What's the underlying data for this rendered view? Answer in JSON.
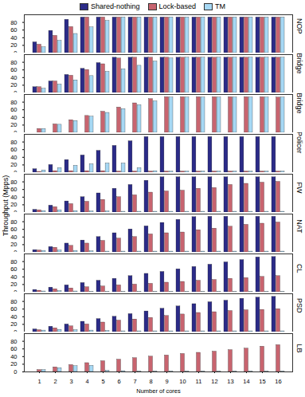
{
  "chart_data": [
    {
      "type": "bar",
      "title": "NOP",
      "legend": "top",
      "categories": [
        1,
        2,
        3,
        4,
        5,
        6,
        7,
        8,
        9,
        10,
        11,
        12,
        13,
        14,
        15,
        16
      ],
      "ylim": [
        0,
        100
      ],
      "yticks": [
        0,
        20,
        40,
        60,
        80
      ],
      "series": [
        {
          "name": "Shared-nothing",
          "color": "#2b2b88",
          "values": [
            28,
            58,
            87,
            93,
            93,
            93,
            93,
            93,
            93,
            93,
            93,
            93,
            93,
            93,
            93,
            93
          ]
        },
        {
          "name": "Lock-based",
          "color": "#c8646f",
          "values": [
            22,
            45,
            68,
            93,
            93,
            93,
            93,
            93,
            93,
            93,
            93,
            93,
            93,
            93,
            93,
            93
          ]
        },
        {
          "name": "TM",
          "color": "#a6d8f4",
          "values": [
            15,
            32,
            50,
            67,
            84,
            93,
            93,
            93,
            93,
            93,
            93,
            93,
            93,
            93,
            93,
            93
          ]
        }
      ]
    },
    {
      "type": "bar",
      "title": "SBridge",
      "categories": [
        1,
        2,
        3,
        4,
        5,
        6,
        7,
        8,
        9,
        10,
        11,
        12,
        13,
        14,
        15,
        16
      ],
      "ylim": [
        0,
        100
      ],
      "yticks": [
        0,
        20,
        40,
        60,
        80
      ],
      "series": [
        {
          "name": "Shared-nothing",
          "color": "#2b2b88",
          "values": [
            15,
            30,
            47,
            63,
            78,
            92,
            92,
            92,
            92,
            92,
            92,
            92,
            92,
            92,
            92,
            92
          ]
        },
        {
          "name": "Lock-based",
          "color": "#c8646f",
          "values": [
            15,
            30,
            45,
            60,
            75,
            90,
            92,
            92,
            92,
            92,
            92,
            92,
            92,
            92,
            92,
            92
          ]
        },
        {
          "name": "TM",
          "color": "#a6d8f4",
          "values": [
            11,
            22,
            33,
            44,
            55,
            62,
            71,
            82,
            90,
            92,
            92,
            92,
            92,
            92,
            92,
            92
          ]
        }
      ]
    },
    {
      "type": "bar",
      "title": "DBridge",
      "categories": [
        1,
        2,
        3,
        4,
        5,
        6,
        7,
        8,
        9,
        10,
        11,
        12,
        13,
        14,
        15,
        16
      ],
      "ylim": [
        0,
        100
      ],
      "yticks": [
        0,
        20,
        40,
        60,
        80
      ],
      "series": [
        {
          "name": "Shared-nothing",
          "color": "#2b2b88",
          "values": [
            null,
            null,
            null,
            null,
            null,
            null,
            null,
            null,
            null,
            null,
            null,
            null,
            null,
            null,
            null,
            null
          ]
        },
        {
          "name": "Lock-based",
          "color": "#c8646f",
          "values": [
            10,
            22,
            33,
            44,
            55,
            66,
            77,
            88,
            93,
            93,
            93,
            93,
            93,
            93,
            93,
            92
          ]
        },
        {
          "name": "TM",
          "color": "#a6d8f4",
          "values": [
            10,
            21,
            31,
            42,
            52,
            62,
            72,
            82,
            92,
            92,
            92,
            92,
            92,
            92,
            92,
            92
          ]
        }
      ]
    },
    {
      "type": "bar",
      "title": "Policer",
      "categories": [
        1,
        2,
        3,
        4,
        5,
        6,
        7,
        8,
        9,
        10,
        11,
        12,
        13,
        14,
        15,
        16
      ],
      "ylim": [
        0,
        100
      ],
      "yticks": [
        0,
        20,
        40,
        60,
        80
      ],
      "series": [
        {
          "name": "Shared-nothing",
          "color": "#2b2b88",
          "values": [
            9,
            20,
            33,
            45,
            57,
            70,
            82,
            93,
            93,
            93,
            93,
            93,
            93,
            93,
            93,
            93
          ]
        },
        {
          "name": "Lock-based",
          "color": "#c8646f",
          "values": [
            2,
            4,
            4,
            4,
            4,
            3,
            3,
            3,
            3,
            3,
            3,
            3,
            3,
            3,
            3,
            3
          ]
        },
        {
          "name": "TM",
          "color": "#a6d8f4",
          "values": [
            6,
            12,
            18,
            22,
            24,
            24,
            12,
            4,
            3,
            3,
            3,
            3,
            3,
            3,
            3,
            3
          ]
        }
      ]
    },
    {
      "type": "bar",
      "title": "FW",
      "y_label": "Throughput (Mpps)",
      "categories": [
        1,
        2,
        3,
        4,
        5,
        6,
        7,
        8,
        9,
        10,
        11,
        12,
        13,
        14,
        15,
        16
      ],
      "ylim": [
        0,
        100
      ],
      "yticks": [
        0,
        20,
        40,
        60,
        80
      ],
      "series": [
        {
          "name": "Shared-nothing",
          "color": "#2b2b88",
          "values": [
            7,
            18,
            29,
            40,
            50,
            62,
            72,
            83,
            92,
            92,
            92,
            92,
            92,
            92,
            92,
            92
          ]
        },
        {
          "name": "Lock-based",
          "color": "#c8646f",
          "values": [
            6,
            14,
            22,
            28,
            33,
            40,
            45,
            52,
            55,
            57,
            62,
            64,
            72,
            75,
            78,
            80
          ]
        },
        {
          "name": "TM",
          "color": "#a6d8f4",
          "values": [
            4,
            6,
            4,
            3,
            3,
            2,
            2,
            2,
            2,
            2,
            2,
            2,
            2,
            2,
            2,
            2
          ]
        }
      ]
    },
    {
      "type": "bar",
      "title": "NAT",
      "categories": [
        1,
        2,
        3,
        4,
        5,
        6,
        7,
        8,
        9,
        10,
        11,
        12,
        13,
        14,
        15,
        16
      ],
      "ylim": [
        0,
        100
      ],
      "yticks": [
        0,
        20,
        40,
        60,
        80
      ],
      "series": [
        {
          "name": "Shared-nothing",
          "color": "#2b2b88",
          "values": [
            6,
            14,
            23,
            31,
            40,
            50,
            60,
            68,
            77,
            85,
            92,
            93,
            93,
            93,
            93,
            93
          ]
        },
        {
          "name": "Lock-based",
          "color": "#c8646f",
          "values": [
            5,
            12,
            17,
            23,
            30,
            36,
            40,
            47,
            50,
            52,
            58,
            62,
            67,
            72,
            75,
            78
          ]
        },
        {
          "name": "TM",
          "color": "#a6d8f4",
          "values": [
            4,
            5,
            4,
            3,
            2,
            2,
            2,
            2,
            2,
            2,
            2,
            2,
            2,
            2,
            2,
            2
          ]
        }
      ]
    },
    {
      "type": "bar",
      "title": "CL",
      "categories": [
        1,
        2,
        3,
        4,
        5,
        6,
        7,
        8,
        9,
        10,
        11,
        12,
        13,
        14,
        15,
        16
      ],
      "ylim": [
        0,
        100
      ],
      "yticks": [
        0,
        20,
        40,
        60,
        80
      ],
      "series": [
        {
          "name": "Shared-nothing",
          "color": "#2b2b88",
          "values": [
            6,
            12,
            18,
            24,
            30,
            35,
            42,
            48,
            53,
            60,
            66,
            72,
            78,
            84,
            91,
            92
          ]
        },
        {
          "name": "Lock-based",
          "color": "#c8646f",
          "values": [
            4,
            8,
            10,
            13,
            15,
            18,
            20,
            22,
            25,
            27,
            30,
            32,
            35,
            37,
            40,
            42
          ]
        },
        {
          "name": "TM",
          "color": "#a6d8f4",
          "values": [
            2,
            3,
            2,
            1,
            1,
            1,
            1,
            1,
            1,
            1,
            1,
            1,
            1,
            1,
            1,
            1
          ]
        }
      ]
    },
    {
      "type": "bar",
      "title": "PSD",
      "categories": [
        1,
        2,
        3,
        4,
        5,
        6,
        7,
        8,
        9,
        10,
        11,
        12,
        13,
        14,
        15,
        16
      ],
      "ylim": [
        0,
        100
      ],
      "yticks": [
        0,
        20,
        40,
        60,
        80
      ],
      "series": [
        {
          "name": "Shared-nothing",
          "color": "#2b2b88",
          "values": [
            7,
            14,
            20,
            27,
            34,
            40,
            47,
            54,
            61,
            67,
            73,
            78,
            82,
            87,
            90,
            92
          ]
        },
        {
          "name": "Lock-based",
          "color": "#c8646f",
          "values": [
            5,
            10,
            15,
            20,
            25,
            30,
            33,
            37,
            42,
            46,
            50,
            52,
            55,
            57,
            58,
            60
          ]
        },
        {
          "name": "TM",
          "color": "#a6d8f4",
          "values": [
            4,
            6,
            5,
            4,
            3,
            2,
            2,
            2,
            2,
            2,
            2,
            2,
            2,
            2,
            2,
            2
          ]
        }
      ]
    },
    {
      "type": "bar",
      "title": "LB",
      "x_label": "Number of cores",
      "categories": [
        1,
        2,
        3,
        4,
        5,
        6,
        7,
        8,
        9,
        10,
        11,
        12,
        13,
        14,
        15,
        16
      ],
      "ylim": [
        0,
        100
      ],
      "yticks": [
        0,
        20,
        40,
        60,
        80
      ],
      "series": [
        {
          "name": "Shared-nothing",
          "color": "#2b2b88",
          "values": [
            null,
            null,
            null,
            null,
            null,
            null,
            null,
            null,
            null,
            null,
            null,
            null,
            null,
            null,
            null,
            null
          ]
        },
        {
          "name": "Lock-based",
          "color": "#c8646f",
          "values": [
            5,
            12,
            18,
            23,
            28,
            32,
            36,
            40,
            43,
            47,
            50,
            53,
            57,
            61,
            66,
            70
          ]
        },
        {
          "name": "TM",
          "color": "#a6d8f4",
          "values": [
            5,
            10,
            15,
            16,
            3,
            2,
            1,
            1,
            1,
            1,
            1,
            1,
            1,
            1,
            1,
            1
          ]
        }
      ]
    }
  ]
}
